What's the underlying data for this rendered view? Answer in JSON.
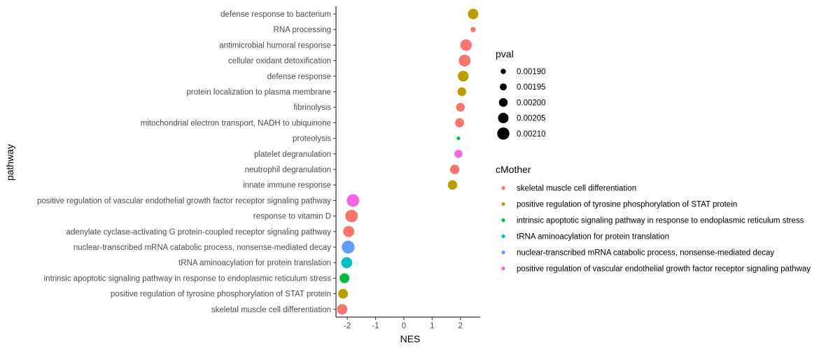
{
  "chart_data": {
    "type": "scatter",
    "title": "",
    "xlabel": "NES",
    "ylabel": "pathway",
    "xlim": [
      -2.4,
      2.7
    ],
    "xticks": [
      -2,
      -1,
      0,
      1,
      2
    ],
    "grid": false,
    "points": [
      {
        "pathway": "defense response to bacterium",
        "nes": 2.45,
        "pval": 0.00205,
        "cMother": "positive regulation of tyrosine phosphorylation of STAT protein"
      },
      {
        "pathway": "RNA processing",
        "nes": 2.45,
        "pval": 0.0019,
        "cMother": "skeletal muscle cell differentiation"
      },
      {
        "pathway": "antimicrobial humoral response",
        "nes": 2.2,
        "pval": 0.00208,
        "cMother": "skeletal muscle cell differentiation"
      },
      {
        "pathway": "cellular oxidant detoxification",
        "nes": 2.15,
        "pval": 0.00209,
        "cMother": "skeletal muscle cell differentiation"
      },
      {
        "pathway": "defense response",
        "nes": 2.1,
        "pval": 0.00206,
        "cMother": "positive regulation of tyrosine phosphorylation of STAT protein"
      },
      {
        "pathway": "protein localization to plasma membrane",
        "nes": 2.05,
        "pval": 0.002,
        "cMother": "positive regulation of tyrosine phosphorylation of STAT protein"
      },
      {
        "pathway": "fibrinolysis",
        "nes": 2.0,
        "pval": 0.002,
        "cMother": "skeletal muscle cell differentiation"
      },
      {
        "pathway": "mitochondrial electron transport, NADH to ubiquinone",
        "nes": 1.97,
        "pval": 0.00201,
        "cMother": "skeletal muscle cell differentiation"
      },
      {
        "pathway": "proteolysis",
        "nes": 1.93,
        "pval": 0.00185,
        "cMother": "intrinsic apoptotic signaling pathway in response to endoplasmic reticulum stress"
      },
      {
        "pathway": "platelet degranulation",
        "nes": 1.93,
        "pval": 0.00198,
        "cMother": "positive regulation of vascular endothelial growth factor receptor signaling pathway"
      },
      {
        "pathway": "neutrophil degranulation",
        "nes": 1.8,
        "pval": 0.00202,
        "cMother": "skeletal muscle cell differentiation"
      },
      {
        "pathway": "innate immune response",
        "nes": 1.72,
        "pval": 0.00202,
        "cMother": "positive regulation of tyrosine phosphorylation of STAT protein"
      },
      {
        "pathway": "positive regulation of vascular endothelial growth factor receptor signaling pathway",
        "nes": -1.8,
        "pval": 0.00211,
        "cMother": "positive regulation of vascular endothelial growth factor receptor signaling pathway"
      },
      {
        "pathway": "response to vitamin D",
        "nes": -1.85,
        "pval": 0.00211,
        "cMother": "skeletal muscle cell differentiation"
      },
      {
        "pathway": "adenylate cyclase-activating G protein-coupled receptor signaling pathway",
        "nes": -1.95,
        "pval": 0.00207,
        "cMother": "skeletal muscle cell differentiation"
      },
      {
        "pathway": "nuclear-transcribed mRNA catabolic process, nonsense-mediated decay",
        "nes": -1.97,
        "pval": 0.00212,
        "cMother": "nuclear-transcribed mRNA catabolic process, nonsense-mediated decay"
      },
      {
        "pathway": "tRNA aminoacylation for protein translation",
        "nes": -2.02,
        "pval": 0.00207,
        "cMother": "tRNA aminoacylation for protein translation"
      },
      {
        "pathway": "intrinsic apoptotic signaling pathway in response to endoplasmic reticulum stress",
        "nes": -2.1,
        "pval": 0.00203,
        "cMother": "intrinsic apoptotic signaling pathway in response to endoplasmic reticulum stress"
      },
      {
        "pathway": "positive regulation of tyrosine phosphorylation of STAT protein",
        "nes": -2.15,
        "pval": 0.00203,
        "cMother": "positive regulation of tyrosine phosphorylation of STAT protein"
      },
      {
        "pathway": "skeletal muscle cell differentiation",
        "nes": -2.18,
        "pval": 0.00205,
        "cMother": "skeletal muscle cell differentiation"
      }
    ],
    "size_legend": {
      "title": "pval",
      "entries": [
        {
          "label": "0.00190",
          "value": 0.0019
        },
        {
          "label": "0.00195",
          "value": 0.00195
        },
        {
          "label": "0.00200",
          "value": 0.002
        },
        {
          "label": "0.00205",
          "value": 0.00205
        },
        {
          "label": "0.00210",
          "value": 0.0021
        }
      ]
    },
    "color_legend": {
      "title": "cMother",
      "entries": [
        {
          "label": "skeletal muscle cell differentiation",
          "color": "#F8766D"
        },
        {
          "label": "positive regulation of tyrosine phosphorylation of STAT protein",
          "color": "#B79F00"
        },
        {
          "label": "intrinsic apoptotic signaling pathway in response to endoplasmic reticulum stress",
          "color": "#00BA38"
        },
        {
          "label": "tRNA aminoacylation for protein translation",
          "color": "#00BFC4"
        },
        {
          "label": "nuclear-transcribed mRNA catabolic process, nonsense-mediated decay",
          "color": "#619CFF"
        },
        {
          "label": "positive regulation of vascular endothelial growth factor receptor signaling pathway",
          "color": "#F564E3"
        }
      ]
    },
    "size_range_pval": [
      0.00185,
      0.00212
    ]
  }
}
